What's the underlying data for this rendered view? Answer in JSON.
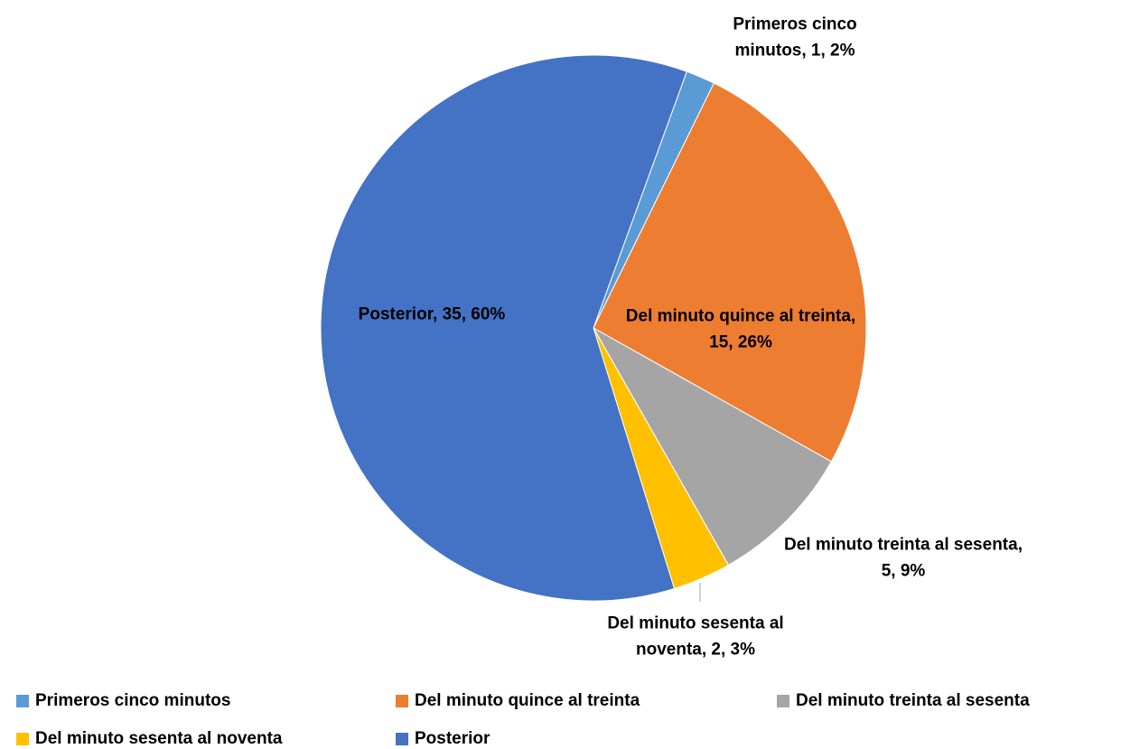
{
  "chart_data": {
    "type": "pie",
    "categories": [
      "Primeros cinco minutos",
      "Del minuto quince al treinta",
      "Del minuto treinta al sesenta",
      "Del minuto sesenta al noventa",
      "Posterior"
    ],
    "values": [
      1,
      15,
      5,
      2,
      35
    ],
    "value_labels": [
      "Primeros cinco minutos, 1, 2%",
      "Del minuto quince al treinta, 15, 26%",
      "Del minuto treinta al sesenta, 5, 9%",
      "Del minuto sesenta al noventa, 2, 3%",
      "Posterior, 35, 60%"
    ],
    "colors": [
      "#5b9bd5",
      "#ed7d31",
      "#a5a5a5",
      "#ffc000",
      "#4472c4"
    ],
    "legend": "bottom"
  }
}
